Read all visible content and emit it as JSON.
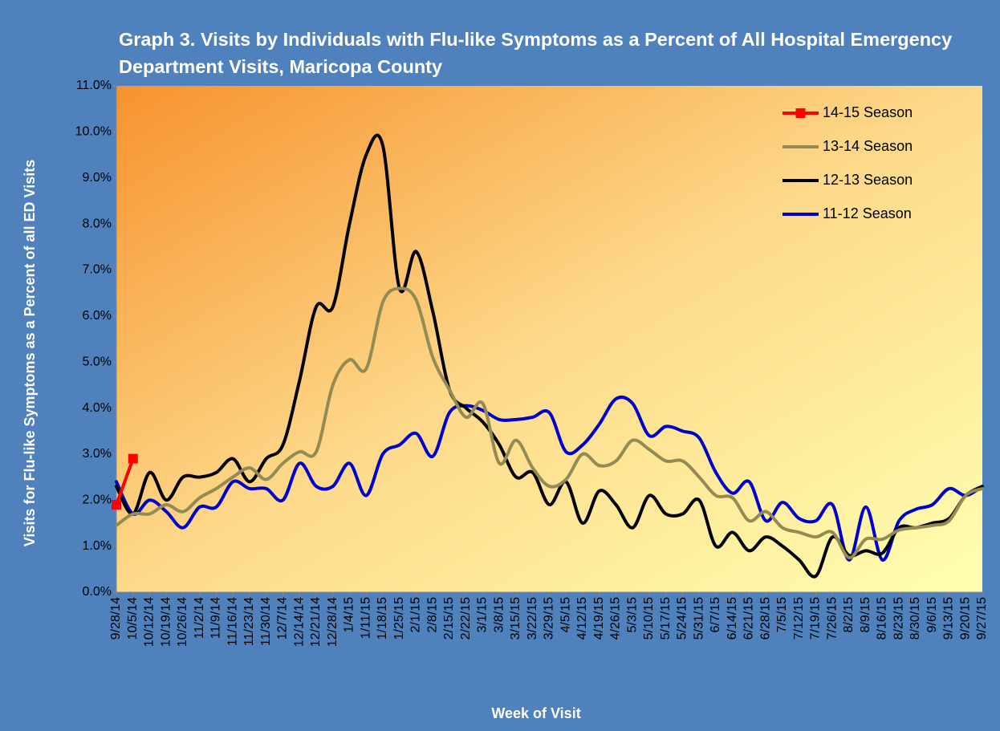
{
  "chart_data": {
    "type": "line",
    "title": "Graph 3. Visits by Individuals with Flu-like Symptoms as a Percent of All Hospital Emergency Department Visits, Maricopa County",
    "x_label": "Week of Visit",
    "y_label": "Visits for Flu-like Symptoms as a Percent of all ED Visits",
    "categories": [
      "9/28/14",
      "10/5/14",
      "10/12/14",
      "10/19/14",
      "10/26/14",
      "11/2/14",
      "11/9/14",
      "11/16/14",
      "11/23/14",
      "11/30/14",
      "12/7/14",
      "12/14/14",
      "12/21/14",
      "12/28/14",
      "1/4/15",
      "1/11/15",
      "1/18/15",
      "1/25/15",
      "2/1/15",
      "2/8/15",
      "2/15/15",
      "2/22/15",
      "3/1/15",
      "3/8/15",
      "3/15/15",
      "3/22/15",
      "3/29/15",
      "4/5/15",
      "4/12/15",
      "4/19/15",
      "4/26/15",
      "5/3/15",
      "5/10/15",
      "5/17/15",
      "5/24/15",
      "5/31/15",
      "6/7/15",
      "6/14/15",
      "6/21/15",
      "6/28/15",
      "7/5/15",
      "7/12/15",
      "7/19/15",
      "7/26/15",
      "8/2/15",
      "8/9/15",
      "8/16/15",
      "8/23/15",
      "8/30/15",
      "9/6/15",
      "9/13/15",
      "9/20/15",
      "9/27/15"
    ],
    "series": [
      {
        "name": "14-15 Season",
        "color": "#ff0000",
        "marker": "square",
        "values": [
          1.9,
          2.9,
          null,
          null,
          null,
          null,
          null,
          null,
          null,
          null,
          null,
          null,
          null,
          null,
          null,
          null,
          null,
          null,
          null,
          null,
          null,
          null,
          null,
          null,
          null,
          null,
          null,
          null,
          null,
          null,
          null,
          null,
          null,
          null,
          null,
          null,
          null,
          null,
          null,
          null,
          null,
          null,
          null,
          null,
          null,
          null,
          null,
          null,
          null,
          null,
          null,
          null,
          null
        ]
      },
      {
        "name": "13-14 Season",
        "color": "#948a54",
        "values": [
          1.45,
          1.7,
          1.7,
          1.9,
          1.75,
          2.05,
          2.25,
          2.5,
          2.7,
          2.45,
          2.8,
          3.05,
          3.05,
          4.5,
          5.05,
          4.85,
          6.3,
          6.6,
          6.35,
          5.1,
          4.4,
          3.8,
          4.1,
          2.8,
          3.3,
          2.7,
          2.3,
          2.45,
          3.0,
          2.75,
          2.85,
          3.3,
          3.1,
          2.85,
          2.85,
          2.5,
          2.1,
          2.05,
          1.55,
          1.75,
          1.4,
          1.3,
          1.2,
          1.3,
          0.75,
          1.15,
          1.15,
          1.35,
          1.4,
          1.45,
          1.55,
          2.1,
          2.25
        ]
      },
      {
        "name": "12-13 Season",
        "color": "#000000",
        "values": [
          2.3,
          1.7,
          2.6,
          2.0,
          2.5,
          2.5,
          2.6,
          2.9,
          2.4,
          2.9,
          3.2,
          4.6,
          6.2,
          6.2,
          8.0,
          9.5,
          9.7,
          6.6,
          7.4,
          6.1,
          4.4,
          4.0,
          3.7,
          3.2,
          2.5,
          2.6,
          1.9,
          2.4,
          1.5,
          2.2,
          1.9,
          1.4,
          2.1,
          1.7,
          1.7,
          2.0,
          1.0,
          1.3,
          0.9,
          1.2,
          1.0,
          0.7,
          0.35,
          1.2,
          0.8,
          0.9,
          0.85,
          1.4,
          1.4,
          1.5,
          1.6,
          2.1,
          2.3
        ]
      },
      {
        "name": "11-12 Season",
        "color": "#0000cc",
        "values": [
          2.4,
          1.7,
          2.0,
          1.75,
          1.4,
          1.85,
          1.85,
          2.4,
          2.25,
          2.25,
          2.0,
          2.8,
          2.3,
          2.3,
          2.8,
          2.1,
          3.0,
          3.2,
          3.45,
          2.95,
          3.9,
          4.05,
          3.95,
          3.75,
          3.75,
          3.8,
          3.9,
          3.05,
          3.2,
          3.65,
          4.2,
          4.1,
          3.4,
          3.6,
          3.5,
          3.35,
          2.6,
          2.15,
          2.4,
          1.55,
          1.95,
          1.6,
          1.55,
          1.9,
          0.7,
          1.85,
          0.7,
          1.55,
          1.8,
          1.9,
          2.25,
          2.1,
          2.3
        ]
      }
    ],
    "ylim": [
      0,
      11
    ],
    "yticks": [
      {
        "value": 0,
        "label": "0.0%"
      },
      {
        "value": 1,
        "label": "1.0%"
      },
      {
        "value": 2,
        "label": "2.0%"
      },
      {
        "value": 3,
        "label": "3.0%"
      },
      {
        "value": 4,
        "label": "4.0%"
      },
      {
        "value": 5,
        "label": "5.0%"
      },
      {
        "value": 6,
        "label": "6.0%"
      },
      {
        "value": 7,
        "label": "7.0%"
      },
      {
        "value": 8,
        "label": "8.0%"
      },
      {
        "value": 9,
        "label": "9.0%"
      },
      {
        "value": 10,
        "label": "10.0%"
      },
      {
        "value": 11,
        "label": "11.0%"
      }
    ],
    "grid": false,
    "legend": "upper right"
  }
}
